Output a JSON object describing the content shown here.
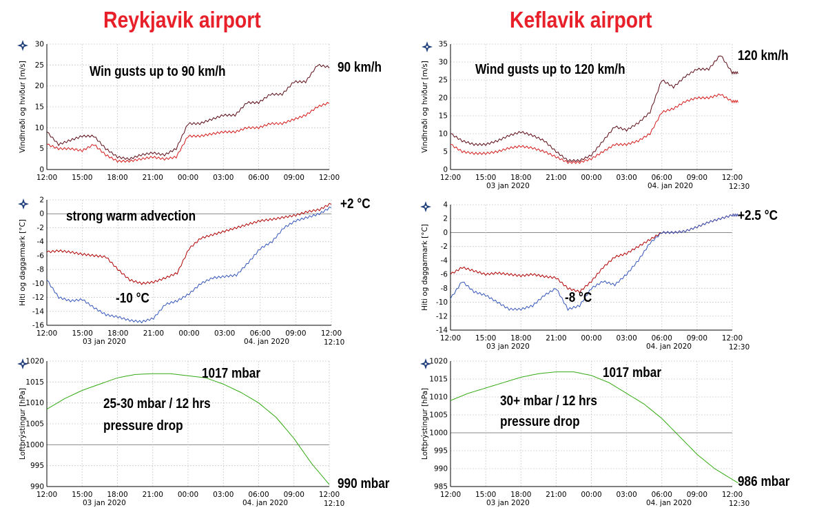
{
  "stations": [
    {
      "title": "Reykjavik airport"
    },
    {
      "title": "Keflavik airport"
    }
  ],
  "icon_name": "vedur-star-icon",
  "colors": {
    "gust": "#5a0a14",
    "wind": "#d51a1a",
    "temp": "#b00000",
    "dew": "#3355bb",
    "pressure": "#33aa11",
    "grid": "#cccccc",
    "zero": "#888888"
  },
  "chart_data": [
    {
      "id": "rvk-wind",
      "type": "line",
      "ylabel": "Vindhraði og hviður [m/s]",
      "ylim": [
        0,
        30
      ],
      "yticks": [
        0,
        5,
        10,
        15,
        20,
        25,
        30
      ],
      "xticks": [
        "12:00",
        "15:00",
        "18:00",
        "21:00",
        "00:00",
        "03:00",
        "06:00",
        "09:00",
        "12:00"
      ],
      "date_labels": [],
      "end_label": "",
      "annotations": [
        {
          "text": "Win gusts up to 90 km/h"
        }
      ],
      "side_label": "90 km/h",
      "series": [
        {
          "name": "Gusts",
          "color": "#5a0a14",
          "x": [
            0,
            1,
            2,
            3,
            4,
            5,
            6,
            7,
            8,
            9,
            10,
            11,
            12,
            13,
            14,
            15,
            16,
            17,
            18,
            19,
            20,
            21,
            22,
            23,
            24
          ],
          "y": [
            9,
            6,
            7,
            8,
            8,
            5,
            3,
            2.5,
            3.5,
            4,
            3.5,
            5,
            11,
            11,
            12,
            13,
            13,
            16,
            16,
            18,
            18,
            21,
            21,
            25,
            24.5
          ]
        },
        {
          "name": "Wind",
          "color": "#d51a1a",
          "x": [
            0,
            1,
            2,
            3,
            4,
            5,
            6,
            7,
            8,
            9,
            10,
            11,
            12,
            13,
            14,
            15,
            16,
            17,
            18,
            19,
            20,
            21,
            22,
            23,
            24
          ],
          "y": [
            6,
            5,
            5,
            4.5,
            6,
            3.5,
            2,
            2,
            2.5,
            3,
            2.5,
            3,
            8,
            8,
            8.5,
            9,
            9,
            10,
            10,
            11,
            11,
            12,
            13,
            15,
            16
          ]
        }
      ]
    },
    {
      "id": "rvk-temp",
      "type": "line",
      "ylabel": "Hiti og daggarmark [°C]",
      "ylim": [
        -16,
        2
      ],
      "yticks": [
        -16,
        -14,
        -12,
        -10,
        -8,
        -6,
        -4,
        -2,
        0,
        2
      ],
      "xticks": [
        "12:00",
        "15:00",
        "18:00",
        "21:00",
        "00:00",
        "03:00",
        "06:00",
        "09:00",
        "12:00"
      ],
      "date_labels": [
        "03 jan 2020",
        "04. jan 2020"
      ],
      "end_label": "12:10",
      "annotations": [
        {
          "text": "strong warm advection"
        },
        {
          "text": "-10 °C"
        }
      ],
      "side_label": "+2 °C",
      "series": [
        {
          "name": "Hiti",
          "color": "#b00000",
          "x": [
            0,
            1,
            2,
            3,
            4,
            5,
            6,
            7,
            8,
            9,
            10,
            11,
            12,
            13,
            14,
            15,
            16,
            17,
            18,
            19,
            20,
            21,
            22,
            23,
            24
          ],
          "y": [
            -5.5,
            -5.3,
            -5.5,
            -5.8,
            -6,
            -6.2,
            -8,
            -9.5,
            -10,
            -9.8,
            -9.2,
            -8.5,
            -5,
            -3.5,
            -3,
            -2.5,
            -2,
            -1.5,
            -1,
            -0.8,
            -0.5,
            -0.2,
            0.3,
            0.6,
            1.5
          ]
        },
        {
          "name": "Daggarmark",
          "color": "#3355bb",
          "x": [
            0,
            1,
            2,
            3,
            4,
            5,
            6,
            7,
            8,
            9,
            10,
            11,
            12,
            13,
            14,
            15,
            16,
            17,
            18,
            19,
            20,
            21,
            22,
            23,
            24
          ],
          "y": [
            -9.5,
            -12,
            -12.5,
            -12.3,
            -13.5,
            -14.5,
            -14.8,
            -15.3,
            -15.5,
            -15,
            -13,
            -12.5,
            -11.5,
            -10,
            -9.2,
            -9,
            -8.8,
            -7,
            -5,
            -4,
            -2,
            -1,
            -0.5,
            0,
            1
          ]
        }
      ]
    },
    {
      "id": "rvk-press",
      "type": "line",
      "ylabel": "Loftþrýstingur [hPa]",
      "ylim": [
        990,
        1020
      ],
      "yticks": [
        990,
        995,
        1000,
        1005,
        1010,
        1015,
        1020
      ],
      "xticks": [
        "12:00",
        "15:00",
        "18:00",
        "21:00",
        "00:00",
        "03:00",
        "06:00",
        "09:00",
        "12:00"
      ],
      "date_labels": [
        "03 jan 2020",
        "04. jan 2020"
      ],
      "end_label": "12:10",
      "annotations": [
        {
          "text": "25-30 mbar / 12 hrs"
        },
        {
          "text": "pressure drop"
        }
      ],
      "top_label": "1017 mbar",
      "side_label": "990 mbar",
      "series": [
        {
          "name": "Loftþrýstingur",
          "color": "#33aa11",
          "x": [
            0,
            1.5,
            3,
            4.5,
            6,
            7.5,
            9,
            10.5,
            12,
            13.5,
            15,
            16.5,
            18,
            19.5,
            21,
            22.5,
            24
          ],
          "y": [
            1008.5,
            1011,
            1013,
            1014.5,
            1016,
            1016.8,
            1017,
            1017,
            1016.5,
            1016,
            1014.5,
            1012.5,
            1010,
            1006.5,
            1001.5,
            995.5,
            990.5
          ]
        }
      ]
    },
    {
      "id": "kef-wind",
      "type": "line",
      "ylabel": "Vindhraði og hviður [m/s]",
      "ylim": [
        0,
        35
      ],
      "yticks": [
        0,
        5,
        10,
        15,
        20,
        25,
        30,
        35
      ],
      "xticks": [
        "12:00",
        "15:00",
        "18:00",
        "21:00",
        "00:00",
        "03:00",
        "06:00",
        "09:00",
        "12:00"
      ],
      "date_labels": [
        "03 jan 2020",
        "04. jan 2020"
      ],
      "end_label": "12:30",
      "annotations": [
        {
          "text": "Wind gusts up to 120 km/h"
        }
      ],
      "side_label": "120 km/h",
      "series": [
        {
          "name": "Gusts",
          "color": "#5a0a14",
          "x": [
            0,
            1,
            2,
            3,
            4,
            5,
            6,
            7,
            8,
            9,
            10,
            11,
            12,
            13,
            14,
            15,
            16,
            17,
            18,
            19,
            20,
            21,
            22,
            23,
            24,
            24.5
          ],
          "y": [
            10,
            8,
            7,
            7,
            8,
            9.5,
            10.5,
            9.5,
            8,
            5,
            2.5,
            2.5,
            4,
            8,
            12,
            11,
            13,
            16,
            25,
            23,
            26,
            28,
            28,
            32,
            27,
            27
          ]
        },
        {
          "name": "Wind",
          "color": "#d51a1a",
          "x": [
            0,
            1,
            2,
            3,
            4,
            5,
            6,
            7,
            8,
            9,
            10,
            11,
            12,
            13,
            14,
            15,
            16,
            17,
            18,
            19,
            20,
            21,
            22,
            23,
            24,
            24.5
          ],
          "y": [
            7,
            5,
            4.5,
            4.5,
            5,
            6,
            6.5,
            6,
            5,
            3.5,
            2,
            2,
            3,
            5,
            7,
            7,
            8,
            10,
            16,
            17,
            19,
            20,
            20,
            21,
            19,
            19
          ]
        }
      ]
    },
    {
      "id": "kef-temp",
      "type": "line",
      "ylabel": "Hiti og daggarmark [°C]",
      "ylim": [
        -14,
        4
      ],
      "yticks": [
        -14,
        -12,
        -10,
        -8,
        -6,
        -4,
        -2,
        0,
        2,
        4
      ],
      "xticks": [
        "12:00",
        "15:00",
        "18:00",
        "21:00",
        "00:00",
        "03:00",
        "06:00",
        "09:00",
        "12:00"
      ],
      "date_labels": [
        "03 jan 2020",
        "04. jan 2020"
      ],
      "end_label": "12:30",
      "annotations": [
        {
          "text": "-8 °C"
        }
      ],
      "side_label": "+2.5 °C",
      "series": [
        {
          "name": "Hiti",
          "color": "#b00000",
          "x": [
            0,
            1,
            2,
            3,
            4,
            5,
            6,
            7,
            8,
            9,
            10,
            11,
            12,
            13,
            14,
            15,
            16,
            17,
            18,
            19,
            20,
            21,
            22,
            23,
            24,
            24.5
          ],
          "y": [
            -6,
            -5,
            -5.5,
            -6,
            -5.8,
            -6,
            -6.2,
            -6,
            -6.3,
            -6.5,
            -8,
            -8.5,
            -7,
            -5,
            -3.5,
            -3,
            -2,
            -1,
            0,
            0,
            0.2,
            0.8,
            1.5,
            2,
            2.5,
            2.5
          ]
        },
        {
          "name": "Daggarmark",
          "color": "#3355bb",
          "x": [
            0,
            1,
            2,
            3,
            4,
            5,
            6,
            7,
            8,
            9,
            10,
            11,
            12,
            13,
            14,
            15,
            16,
            17,
            18,
            19,
            20,
            21,
            22,
            23,
            24,
            24.5
          ],
          "y": [
            -9.5,
            -7,
            -8.5,
            -9,
            -10,
            -11,
            -11,
            -10.5,
            -9,
            -8,
            -11,
            -10.5,
            -8,
            -7,
            -7.5,
            -6,
            -4,
            -1.5,
            0,
            0,
            0.2,
            0.8,
            1.5,
            2,
            2.5,
            2.5
          ]
        }
      ]
    },
    {
      "id": "kef-press",
      "type": "line",
      "ylabel": "Loftþrýstingur [hPa]",
      "ylim": [
        985,
        1020
      ],
      "yticks": [
        985,
        990,
        995,
        1000,
        1005,
        1010,
        1015,
        1020
      ],
      "xticks": [
        "12:00",
        "15:00",
        "18:00",
        "21:00",
        "00:00",
        "03:00",
        "06:00",
        "09:00",
        "12:00"
      ],
      "date_labels": [
        "03 jan 2020",
        "04. jan 2020"
      ],
      "end_label": "12:30",
      "annotations": [
        {
          "text": "30+ mbar / 12 hrs"
        },
        {
          "text": "pressure drop"
        }
      ],
      "top_label": "1017 mbar",
      "side_label": "986 mbar",
      "series": [
        {
          "name": "Loftþrýstingur",
          "color": "#33aa11",
          "x": [
            0,
            1.5,
            3,
            4.5,
            6,
            7.5,
            9,
            10.5,
            12,
            13.5,
            15,
            16.5,
            18,
            19.5,
            21,
            22.5,
            24,
            24.5
          ],
          "y": [
            1009,
            1011,
            1012.5,
            1014,
            1015.5,
            1016.5,
            1017,
            1017,
            1016,
            1014,
            1011,
            1008,
            1004,
            999,
            994,
            990,
            987,
            986
          ]
        }
      ]
    }
  ]
}
